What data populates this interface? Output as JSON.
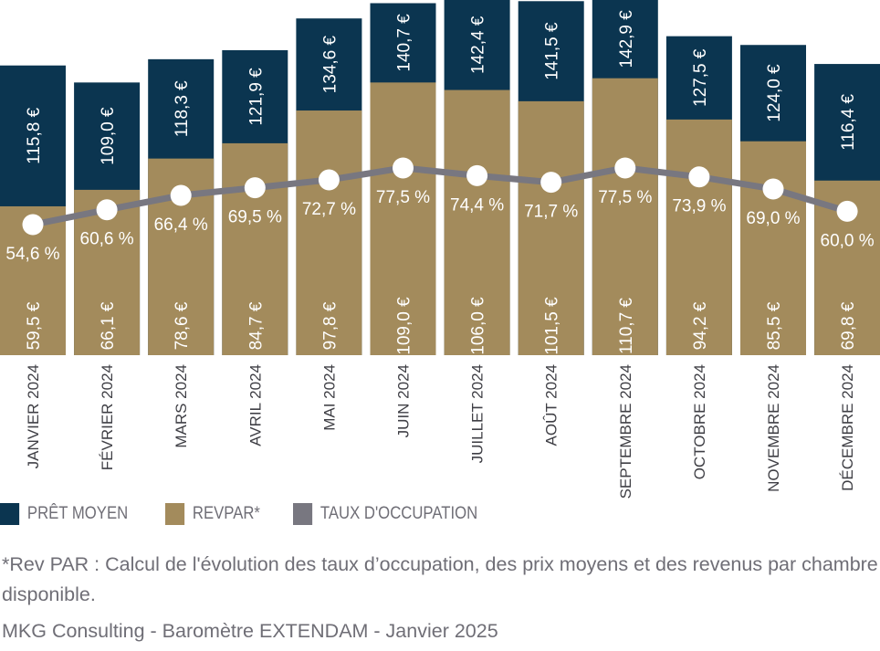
{
  "chart_data": {
    "type": "bar",
    "categories": [
      "JANVIER 2024",
      "FÉVRIER 2024",
      "MARS 2024",
      "AVRIL 2024",
      "MAI 2024",
      "JUIN 2024",
      "JUILLET 2024",
      "AOÛT 2024",
      "SEPTEMBRE 2024",
      "OCTOBRE 2024",
      "NOVEMBRE 2024",
      "DÉCEMBRE 2024"
    ],
    "series": [
      {
        "name": "PRÊT MOYEN",
        "type": "bar",
        "color": "#0b3550",
        "values": [
          115.8,
          109.0,
          118.3,
          121.9,
          134.6,
          140.7,
          142.4,
          141.5,
          142.9,
          127.5,
          124.0,
          116.4
        ],
        "labels": [
          "115,8 €",
          "109,0 €",
          "118,3 €",
          "121,9 €",
          "134,6 €",
          "140,7 €",
          "142,4 €",
          "141,5 €",
          "142,9 €",
          "127,5 €",
          "124,0 €",
          "116,4 €"
        ]
      },
      {
        "name": "REVPAR*",
        "type": "bar",
        "color": "#a38b5c",
        "values": [
          59.5,
          66.1,
          78.6,
          84.7,
          97.8,
          109.0,
          106.0,
          101.5,
          110.7,
          94.2,
          85.5,
          69.8
        ],
        "labels": [
          "59,5 €",
          "66,1 €",
          "78,6 €",
          "84,7 €",
          "97,8 €",
          "109,0 €",
          "106,0 €",
          "101,5 €",
          "110,7 €",
          "94,2 €",
          "85,5 €",
          "69,8 €"
        ]
      },
      {
        "name": "TAUX D'OCCUPATION",
        "type": "line",
        "color": "#787780",
        "values": [
          54.6,
          60.6,
          66.4,
          69.5,
          72.7,
          77.5,
          74.4,
          71.7,
          77.5,
          73.9,
          69.0,
          60.0
        ],
        "labels": [
          "54,6 %",
          "60,6 %",
          "66,4 %",
          "69,5 %",
          "72,7 %",
          "77,5 %",
          "74,4 %",
          "71,7 %",
          "77,5 %",
          "73,9 %",
          "69,0 %",
          "60,0 %"
        ]
      }
    ],
    "legend_position": "bottom-left",
    "grid": false
  },
  "footnote": "*Rev PAR : Calcul de l'évolution des taux d’occupation, des prix moyens et des revenus par chambre disponible.",
  "source": "MKG Consulting - Baromètre EXTENDAM - Janvier 2025"
}
